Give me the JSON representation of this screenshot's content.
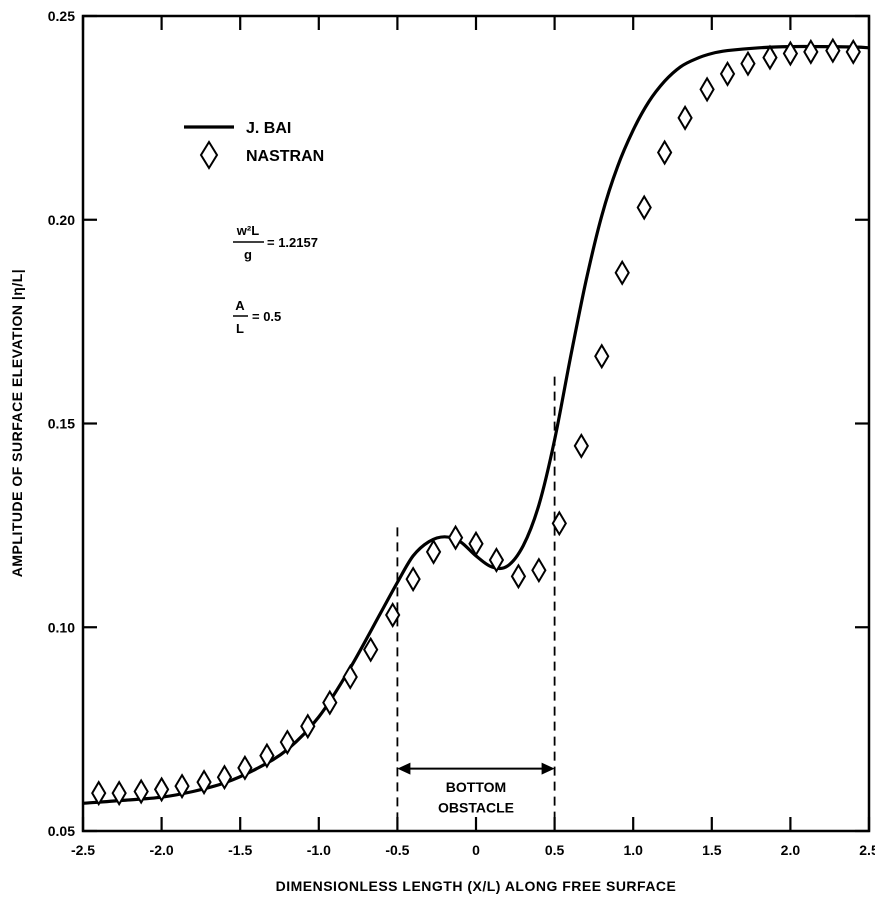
{
  "chart_data": {
    "type": "line",
    "xlabel": "DIMENSIONLESS LENGTH (X/L) ALONG FREE SURFACE",
    "ylabel": "AMPLITUDE OF SURFACE ELEVATION |η/L|",
    "xlim": [
      -2.5,
      2.5
    ],
    "ylim": [
      0.05,
      0.25
    ],
    "x_ticks": [
      -2.5,
      -2.0,
      -1.5,
      -1.0,
      -0.5,
      0,
      0.5,
      1.0,
      1.5,
      2.0,
      2.5
    ],
    "x_tick_labels": [
      "-2.5",
      "-2.0",
      "-1.5",
      "-1.0",
      "-0.5",
      "0",
      "0.5",
      "1.0",
      "1.5",
      "2.0",
      "2.5"
    ],
    "y_ticks": [
      0.05,
      0.1,
      0.15,
      0.2,
      0.25
    ],
    "y_tick_labels": [
      "0.05",
      "0.10",
      "0.15",
      "0.20",
      "0.25"
    ],
    "grid": false,
    "legend_position": "top-left",
    "series": [
      {
        "name": "J. BAI",
        "style": "solid-line",
        "color": "#000000",
        "x": [
          -2.5,
          -2.25,
          -2.0,
          -1.8,
          -1.6,
          -1.4,
          -1.2,
          -1.0,
          -0.8,
          -0.6,
          -0.5,
          -0.4,
          -0.3,
          -0.2,
          -0.1,
          0.0,
          0.1,
          0.2,
          0.3,
          0.4,
          0.5,
          0.6,
          0.7,
          0.8,
          0.9,
          1.0,
          1.1,
          1.2,
          1.3,
          1.4,
          1.5,
          1.6,
          1.8,
          2.0,
          2.2,
          2.4,
          2.5
        ],
        "y": [
          0.0568,
          0.0575,
          0.0583,
          0.0597,
          0.0618,
          0.0652,
          0.07,
          0.078,
          0.09,
          0.104,
          0.111,
          0.1175,
          0.121,
          0.1222,
          0.121,
          0.1175,
          0.1148,
          0.115,
          0.12,
          0.13,
          0.146,
          0.166,
          0.185,
          0.201,
          0.213,
          0.222,
          0.229,
          0.234,
          0.2375,
          0.2395,
          0.2408,
          0.2415,
          0.2422,
          0.2425,
          0.2425,
          0.2424,
          0.2422
        ]
      },
      {
        "name": "NASTRAN",
        "style": "open-diamond",
        "color": "#000000",
        "x": [
          -2.4,
          -2.27,
          -2.13,
          -2.0,
          -1.87,
          -1.73,
          -1.6,
          -1.47,
          -1.33,
          -1.2,
          -1.07,
          -0.93,
          -0.8,
          -0.67,
          -0.53,
          -0.4,
          -0.27,
          -0.13,
          0.0,
          0.13,
          0.27,
          0.4,
          0.53,
          0.67,
          0.8,
          0.93,
          1.07,
          1.2,
          1.33,
          1.47,
          1.6,
          1.73,
          1.87,
          2.0,
          2.13,
          2.27,
          2.4
        ],
        "y": [
          0.0593,
          0.0593,
          0.0597,
          0.0602,
          0.061,
          0.062,
          0.0632,
          0.0655,
          0.0685,
          0.0718,
          0.0757,
          0.0815,
          0.0878,
          0.0945,
          0.103,
          0.1118,
          0.1185,
          0.122,
          0.1205,
          0.1165,
          0.1125,
          0.114,
          0.1255,
          0.1445,
          0.1665,
          0.187,
          0.203,
          0.2165,
          0.225,
          0.232,
          0.2358,
          0.2383,
          0.2398,
          0.2408,
          0.2412,
          0.2415,
          0.2412
        ]
      }
    ],
    "annotations": {
      "param1_numerator": "w²L",
      "param1_denominator": "g",
      "param1_value": "= 1.2157",
      "param2_numerator": "A",
      "param2_denominator": "L",
      "param2_value": "= 0.5",
      "obstacle_label_line1": "BOTTOM",
      "obstacle_label_line2": "OBSTACLE",
      "obstacle_x_range": [
        -0.5,
        0.5
      ]
    }
  }
}
